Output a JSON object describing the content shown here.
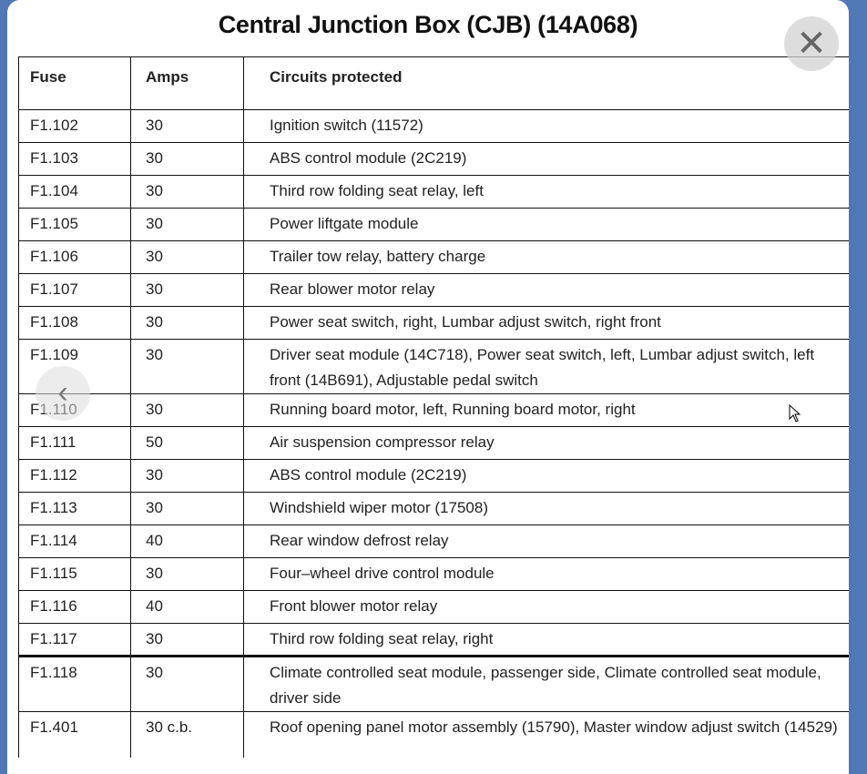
{
  "lightbox": {
    "close_icon": "close-x-icon",
    "prev_icon": "chevron-left-icon",
    "close_glyph": "✕",
    "prev_glyph": "‹"
  },
  "title": "Central Junction Box (CJB) (14A068)",
  "table": {
    "headers": [
      "Fuse",
      "Amps",
      "Circuits protected"
    ],
    "rows": [
      {
        "fuse": "F1.102",
        "amps": "30",
        "circuit": "Ignition switch (11572)"
      },
      {
        "fuse": "F1.103",
        "amps": "30",
        "circuit": "ABS control module (2C219)"
      },
      {
        "fuse": "F1.104",
        "amps": "30",
        "circuit": "Third row folding seat relay, left"
      },
      {
        "fuse": "F1.105",
        "amps": "30",
        "circuit": "Power liftgate module"
      },
      {
        "fuse": "F1.106",
        "amps": "30",
        "circuit": "Trailer tow relay, battery charge"
      },
      {
        "fuse": "F1.107",
        "amps": "30",
        "circuit": "Rear blower motor relay"
      },
      {
        "fuse": "F1.108",
        "amps": "30",
        "circuit": "Power seat switch, right, Lumbar adjust switch, right front"
      },
      {
        "fuse": "F1.109",
        "amps": "30",
        "circuit": "Driver seat module (14C718), Power seat switch, left, Lumbar adjust switch, left front (14B691), Adjustable pedal switch"
      },
      {
        "fuse": "F1.110",
        "amps": "30",
        "circuit": "Running board motor, left, Running board motor, right"
      },
      {
        "fuse": "F1.111",
        "amps": "50",
        "circuit": "Air suspension compressor relay"
      },
      {
        "fuse": "F1.112",
        "amps": "30",
        "circuit": "ABS control module (2C219)"
      },
      {
        "fuse": "F1.113",
        "amps": "30",
        "circuit": "Windshield wiper motor (17508)"
      },
      {
        "fuse": "F1.114",
        "amps": "40",
        "circuit": "Rear window defrost relay"
      },
      {
        "fuse": "F1.115",
        "amps": "30",
        "circuit": "Four–wheel drive control module"
      },
      {
        "fuse": "F1.116",
        "amps": "40",
        "circuit": "Front blower motor relay"
      },
      {
        "fuse": "F1.117",
        "amps": "30",
        "circuit": "Third row folding seat relay, right"
      },
      {
        "fuse": "F1.118",
        "amps": "30",
        "circuit": "Climate controlled seat module, passenger side, Climate controlled seat module, driver side"
      },
      {
        "fuse": "F1.401",
        "amps": "30  c.b.",
        "circuit": "Roof opening panel motor assembly (15790), Master window adjust switch (14529)"
      }
    ]
  }
}
